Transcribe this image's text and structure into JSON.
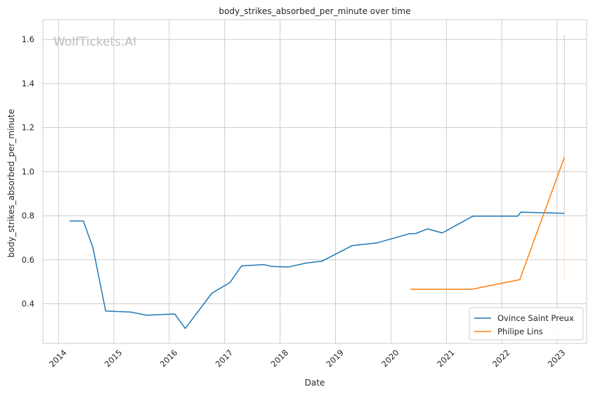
{
  "chart_data": {
    "type": "line",
    "title": "body_strikes_absorbed_per_minute over time",
    "xlabel": "Date",
    "ylabel": "body_strikes_absorbed_per_minute",
    "watermark": "WolfTickets.AI",
    "xlim": [
      "2013-09-20",
      "2023-07-15"
    ],
    "ylim": [
      0.22,
      1.69
    ],
    "x_ticks": [
      "2014",
      "2015",
      "2016",
      "2017",
      "2018",
      "2019",
      "2020",
      "2021",
      "2022",
      "2023"
    ],
    "y_ticks": [
      "0.4",
      "0.6",
      "0.8",
      "1.0",
      "1.2",
      "1.4",
      "1.6"
    ],
    "grid": true,
    "legend_position": "lower-right",
    "series": [
      {
        "name": "Ovince Saint Preux",
        "color": "#1f77b4",
        "points": [
          [
            "2014-03-15",
            0.776
          ],
          [
            "2014-06-14",
            0.776
          ],
          [
            "2014-08-16",
            0.656
          ],
          [
            "2014-11-08",
            0.367
          ],
          [
            "2015-04-18",
            0.363
          ],
          [
            "2015-08-08",
            0.348
          ],
          [
            "2016-02-06",
            0.354
          ],
          [
            "2016-04-16",
            0.288
          ],
          [
            "2016-10-08",
            0.448
          ],
          [
            "2017-02-04",
            0.496
          ],
          [
            "2017-04-22",
            0.572
          ],
          [
            "2017-09-16",
            0.578
          ],
          [
            "2017-11-04",
            0.57
          ],
          [
            "2018-02-24",
            0.567
          ],
          [
            "2018-06-23",
            0.585
          ],
          [
            "2018-10-06",
            0.594
          ],
          [
            "2019-04-20",
            0.664
          ],
          [
            "2019-10-05",
            0.677
          ],
          [
            "2020-05-02",
            0.718
          ],
          [
            "2020-06-13",
            0.719
          ],
          [
            "2020-08-29",
            0.74
          ],
          [
            "2020-12-05",
            0.722
          ],
          [
            "2021-06-26",
            0.798
          ],
          [
            "2022-04-16",
            0.798
          ],
          [
            "2022-05-07",
            0.816
          ],
          [
            "2023-02-18",
            0.811
          ]
        ]
      },
      {
        "name": "Philipe Lins",
        "color": "#ff7f0e",
        "points": [
          [
            "2020-05-09",
            0.466
          ],
          [
            "2021-06-19",
            0.466
          ],
          [
            "2022-04-30",
            0.51
          ],
          [
            "2023-02-18",
            1.065
          ]
        ]
      }
    ],
    "error_bars": [
      {
        "series": "Ovince Saint Preux",
        "x": "2023-02-18",
        "low": 0.8,
        "high": 1.62
      },
      {
        "series": "Philipe Lins",
        "x": "2023-02-18",
        "low": 0.5,
        "high": 1.62
      }
    ]
  }
}
